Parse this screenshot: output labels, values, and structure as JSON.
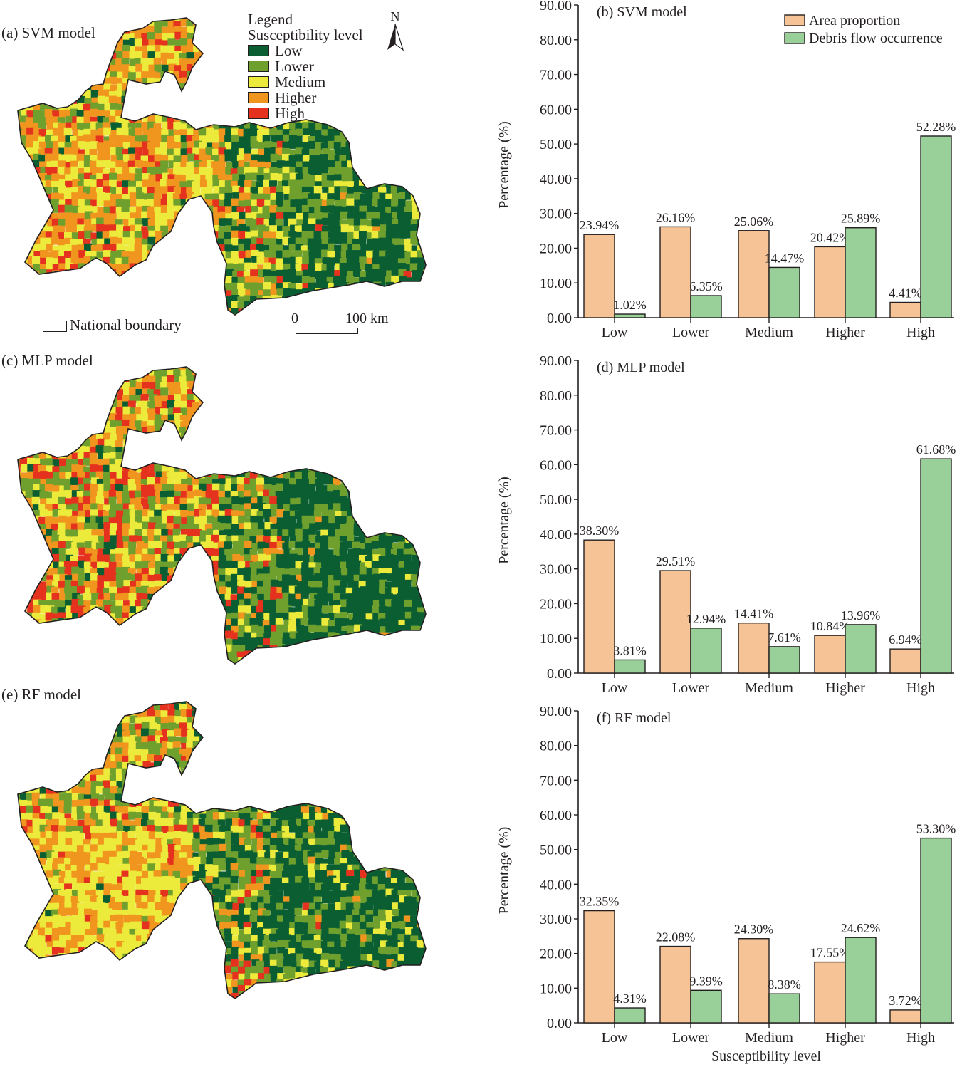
{
  "colors": {
    "low": "#0b5e32",
    "lower": "#6fa02e",
    "medium": "#ecea3a",
    "higher": "#f0961e",
    "high": "#e4321e",
    "area_bar": "#f5c396",
    "debris_bar": "#99cf99",
    "ink": "#231f20"
  },
  "maps": [
    {
      "id": "a",
      "label": "(a) SVM model"
    },
    {
      "id": "c",
      "label": "(c) MLP model"
    },
    {
      "id": "e",
      "label": "(e) RF model"
    }
  ],
  "map_legend": {
    "title": "Legend",
    "subtitle": "Susceptibility level",
    "items": [
      {
        "label": "Low",
        "color_key": "low"
      },
      {
        "label": "Lower",
        "color_key": "lower"
      },
      {
        "label": "Medium",
        "color_key": "medium"
      },
      {
        "label": "Higher",
        "color_key": "higher"
      },
      {
        "label": "High",
        "color_key": "high"
      }
    ],
    "north_label": "N",
    "boundary_label": "National boundary",
    "scale_start": "0",
    "scale_end": "100 km"
  },
  "chart_data": [
    {
      "type": "bar",
      "title": "(b) SVM model",
      "xlabel": "",
      "ylabel": "Percentage (%)",
      "ylim": [
        0,
        90
      ],
      "yticks": [
        "0.00",
        "10.00",
        "20.00",
        "30.00",
        "40.00",
        "50.00",
        "60.00",
        "70.00",
        "80.00",
        "90.00"
      ],
      "categories": [
        "Low",
        "Lower",
        "Medium",
        "Higher",
        "High"
      ],
      "legend": {
        "placement": "top-right",
        "show": true
      },
      "series": [
        {
          "name": "Area proportion",
          "values": [
            23.94,
            26.16,
            25.06,
            20.42,
            4.41
          ],
          "labels": [
            "23.94%",
            "26.16%",
            "25.06%",
            "20.42%",
            "4.41%"
          ]
        },
        {
          "name": "Debris flow occurrence",
          "values": [
            1.02,
            6.35,
            14.47,
            25.89,
            52.28
          ],
          "labels": [
            "1.02%",
            "6.35%",
            "14.47%",
            "25.89%",
            "52.28%"
          ]
        }
      ]
    },
    {
      "type": "bar",
      "title": "(d) MLP model",
      "xlabel": "",
      "ylabel": "Percentage (%)",
      "ylim": [
        0,
        90
      ],
      "yticks": [
        "0.00",
        "10.00",
        "20.00",
        "30.00",
        "40.00",
        "50.00",
        "60.00",
        "70.00",
        "80.00",
        "90.00"
      ],
      "categories": [
        "Low",
        "Lower",
        "Medium",
        "Higher",
        "High"
      ],
      "legend": {
        "show": false
      },
      "series": [
        {
          "name": "Area proportion",
          "values": [
            38.3,
            29.51,
            14.41,
            10.84,
            6.94
          ],
          "labels": [
            "38.30%",
            "29.51%",
            "14.41%",
            "10.84%",
            "6.94%"
          ]
        },
        {
          "name": "Debris flow occurrence",
          "values": [
            3.81,
            12.94,
            7.61,
            13.96,
            61.68
          ],
          "labels": [
            "3.81%",
            "12.94%",
            "7.61%",
            "13.96%",
            "61.68%"
          ]
        }
      ]
    },
    {
      "type": "bar",
      "title": "(f) RF model",
      "xlabel": "Susceptibility level",
      "ylabel": "Percentage (%)",
      "ylim": [
        0,
        90
      ],
      "yticks": [
        "0.00",
        "10.00",
        "20.00",
        "30.00",
        "40.00",
        "50.00",
        "60.00",
        "70.00",
        "80.00",
        "90.00"
      ],
      "categories": [
        "Low",
        "Lower",
        "Medium",
        "Higher",
        "High"
      ],
      "legend": {
        "show": false
      },
      "series": [
        {
          "name": "Area proportion",
          "values": [
            32.35,
            22.08,
            24.3,
            17.55,
            3.72
          ],
          "labels": [
            "32.35%",
            "22.08%",
            "24.30%",
            "17.55%",
            "3.72%"
          ]
        },
        {
          "name": "Debris flow occurrence",
          "values": [
            4.31,
            9.39,
            8.38,
            24.62,
            53.3
          ],
          "labels": [
            "4.31%",
            "9.39%",
            "8.38%",
            "24.62%",
            "53.30%"
          ]
        }
      ]
    }
  ]
}
